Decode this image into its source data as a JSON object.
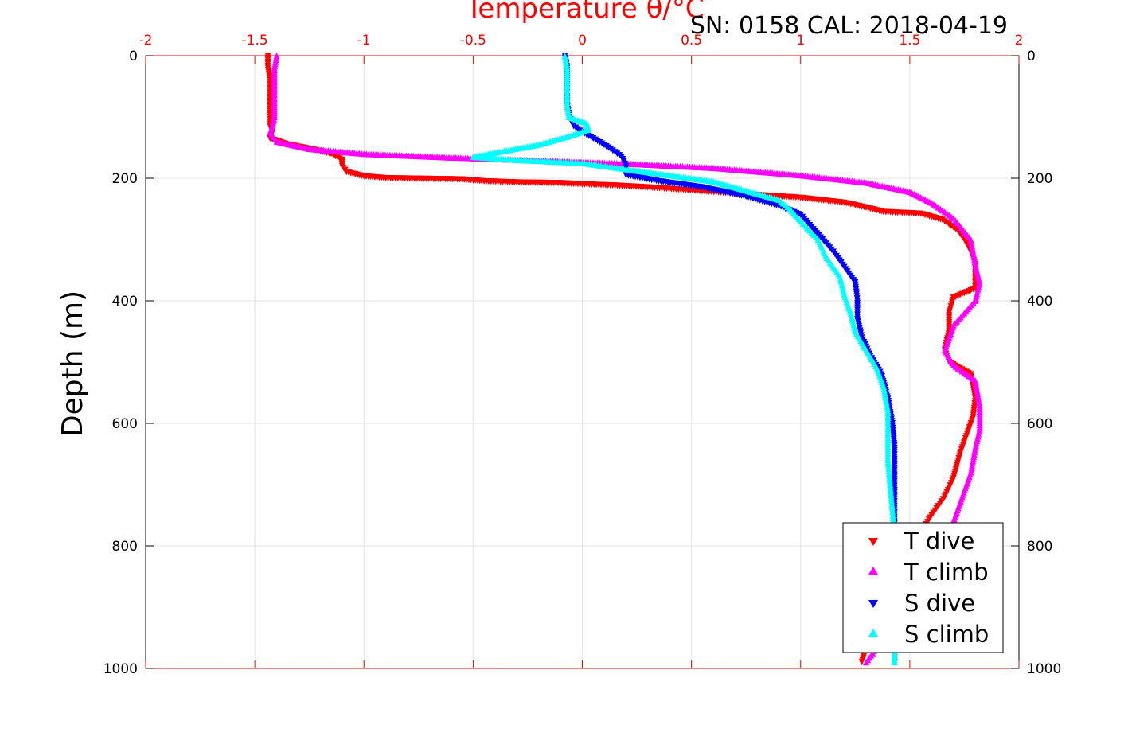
{
  "chart_data": {
    "type": "scatter",
    "title": "SN: 0158  CAL: 2018-04-19",
    "xlabel": "Temperature θ/°C",
    "ylabel": "Depth (m)",
    "xlim": [
      -2,
      2
    ],
    "ylim": [
      0,
      1000
    ],
    "y_reversed": true,
    "grid": true,
    "legend_position": "bottom-right",
    "x_ticks": [
      "-2",
      "-1.5",
      "-1",
      "-0.5",
      "0",
      "0.5",
      "1",
      "1.5",
      "2"
    ],
    "y_ticks_left": [
      "0",
      "200",
      "400",
      "600",
      "800",
      "1000"
    ],
    "y_ticks_right": [
      "0",
      "200",
      "400",
      "600",
      "800",
      "1000"
    ],
    "series": [
      {
        "name": "T dive",
        "color": "#ff0000",
        "marker": "triangle-down",
        "points": [
          [
            -1.44,
            0
          ],
          [
            -1.44,
            20
          ],
          [
            -1.43,
            40
          ],
          [
            -1.43,
            60
          ],
          [
            -1.43,
            80
          ],
          [
            -1.43,
            100
          ],
          [
            -1.43,
            115
          ],
          [
            -1.42,
            125
          ],
          [
            -1.43,
            135
          ],
          [
            -1.35,
            145
          ],
          [
            -1.25,
            152
          ],
          [
            -1.15,
            160
          ],
          [
            -1.1,
            170
          ],
          [
            -1.1,
            180
          ],
          [
            -1.08,
            190
          ],
          [
            -1.0,
            197
          ],
          [
            -0.9,
            200
          ],
          [
            -0.55,
            202
          ],
          [
            -0.45,
            205
          ],
          [
            -0.3,
            207
          ],
          [
            -0.1,
            208
          ],
          [
            0.0,
            210
          ],
          [
            0.15,
            212
          ],
          [
            0.3,
            215
          ],
          [
            0.7,
            225
          ],
          [
            1.0,
            232
          ],
          [
            1.2,
            240
          ],
          [
            1.3,
            248
          ],
          [
            1.38,
            255
          ],
          [
            1.55,
            258
          ],
          [
            1.65,
            268
          ],
          [
            1.72,
            285
          ],
          [
            1.75,
            300
          ],
          [
            1.78,
            320
          ],
          [
            1.8,
            340
          ],
          [
            1.8,
            360
          ],
          [
            1.8,
            380
          ],
          [
            1.7,
            395
          ],
          [
            1.68,
            420
          ],
          [
            1.68,
            450
          ],
          [
            1.66,
            480
          ],
          [
            1.68,
            500
          ],
          [
            1.78,
            520
          ],
          [
            1.8,
            560
          ],
          [
            1.79,
            590
          ],
          [
            1.77,
            610
          ],
          [
            1.73,
            650
          ],
          [
            1.7,
            690
          ],
          [
            1.66,
            720
          ],
          [
            1.6,
            750
          ],
          [
            1.55,
            780
          ],
          [
            1.5,
            820
          ],
          [
            1.45,
            860
          ],
          [
            1.4,
            900
          ],
          [
            1.35,
            940
          ],
          [
            1.3,
            970
          ],
          [
            1.28,
            990
          ]
        ]
      },
      {
        "name": "T climb",
        "color": "#ff00ff",
        "marker": "triangle-up",
        "points": [
          [
            -1.4,
            0
          ],
          [
            -1.41,
            20
          ],
          [
            -1.41,
            40
          ],
          [
            -1.41,
            60
          ],
          [
            -1.41,
            80
          ],
          [
            -1.41,
            100
          ],
          [
            -1.42,
            115
          ],
          [
            -1.43,
            125
          ],
          [
            -1.4,
            140
          ],
          [
            -1.25,
            152
          ],
          [
            -1.0,
            160
          ],
          [
            -0.6,
            166
          ],
          [
            -0.2,
            171
          ],
          [
            0.2,
            176
          ],
          [
            0.6,
            183
          ],
          [
            1.0,
            195
          ],
          [
            1.3,
            207
          ],
          [
            1.5,
            222
          ],
          [
            1.6,
            240
          ],
          [
            1.7,
            265
          ],
          [
            1.78,
            300
          ],
          [
            1.8,
            340
          ],
          [
            1.82,
            370
          ],
          [
            1.8,
            400
          ],
          [
            1.75,
            420
          ],
          [
            1.7,
            440
          ],
          [
            1.68,
            460
          ],
          [
            1.66,
            480
          ],
          [
            1.7,
            505
          ],
          [
            1.8,
            530
          ],
          [
            1.82,
            570
          ],
          [
            1.82,
            610
          ],
          [
            1.8,
            640
          ],
          [
            1.78,
            680
          ],
          [
            1.74,
            720
          ],
          [
            1.7,
            760
          ],
          [
            1.63,
            800
          ],
          [
            1.56,
            840
          ],
          [
            1.48,
            880
          ],
          [
            1.42,
            920
          ],
          [
            1.37,
            950
          ],
          [
            1.33,
            975
          ],
          [
            1.3,
            990
          ]
        ]
      },
      {
        "name": "S dive",
        "color": "#0000ff",
        "marker": "triangle-down",
        "points": [
          [
            -0.08,
            0
          ],
          [
            -0.07,
            20
          ],
          [
            -0.07,
            40
          ],
          [
            -0.07,
            60
          ],
          [
            -0.07,
            80
          ],
          [
            -0.06,
            100
          ],
          [
            -0.04,
            115
          ],
          [
            0.0,
            125
          ],
          [
            0.05,
            135
          ],
          [
            0.12,
            150
          ],
          [
            0.18,
            165
          ],
          [
            0.2,
            180
          ],
          [
            0.2,
            195
          ],
          [
            0.35,
            205
          ],
          [
            0.55,
            215
          ],
          [
            0.75,
            230
          ],
          [
            0.9,
            245
          ],
          [
            1.0,
            260
          ],
          [
            1.05,
            280
          ],
          [
            1.1,
            300
          ],
          [
            1.15,
            320
          ],
          [
            1.2,
            345
          ],
          [
            1.25,
            370
          ],
          [
            1.26,
            400
          ],
          [
            1.26,
            430
          ],
          [
            1.28,
            460
          ],
          [
            1.32,
            490
          ],
          [
            1.37,
            520
          ],
          [
            1.4,
            560
          ],
          [
            1.42,
            600
          ],
          [
            1.43,
            640
          ],
          [
            1.43,
            680
          ],
          [
            1.43,
            720
          ],
          [
            1.43,
            760
          ],
          [
            1.43,
            800
          ],
          [
            1.43,
            840
          ],
          [
            1.43,
            880
          ],
          [
            1.43,
            920
          ],
          [
            1.43,
            960
          ],
          [
            1.43,
            990
          ]
        ]
      },
      {
        "name": "S climb",
        "color": "#00ffff",
        "marker": "triangle-up",
        "points": [
          [
            -0.08,
            0
          ],
          [
            -0.07,
            20
          ],
          [
            -0.07,
            40
          ],
          [
            -0.07,
            60
          ],
          [
            -0.07,
            80
          ],
          [
            -0.06,
            100
          ],
          [
            0.02,
            110
          ],
          [
            0.03,
            120
          ],
          [
            -0.05,
            130
          ],
          [
            -0.2,
            145
          ],
          [
            -0.4,
            158
          ],
          [
            -0.5,
            165
          ],
          [
            -0.3,
            170
          ],
          [
            0.0,
            175
          ],
          [
            0.2,
            185
          ],
          [
            0.4,
            195
          ],
          [
            0.6,
            205
          ],
          [
            0.75,
            220
          ],
          [
            0.9,
            235
          ],
          [
            0.95,
            250
          ],
          [
            1.0,
            270
          ],
          [
            1.08,
            300
          ],
          [
            1.12,
            330
          ],
          [
            1.18,
            360
          ],
          [
            1.2,
            390
          ],
          [
            1.23,
            420
          ],
          [
            1.25,
            450
          ],
          [
            1.3,
            480
          ],
          [
            1.35,
            510
          ],
          [
            1.38,
            540
          ],
          [
            1.4,
            580
          ],
          [
            1.4,
            620
          ],
          [
            1.4,
            660
          ],
          [
            1.41,
            700
          ],
          [
            1.42,
            740
          ],
          [
            1.43,
            780
          ],
          [
            1.43,
            820
          ],
          [
            1.43,
            860
          ],
          [
            1.43,
            900
          ],
          [
            1.43,
            940
          ],
          [
            1.43,
            975
          ],
          [
            1.43,
            990
          ]
        ]
      }
    ]
  }
}
